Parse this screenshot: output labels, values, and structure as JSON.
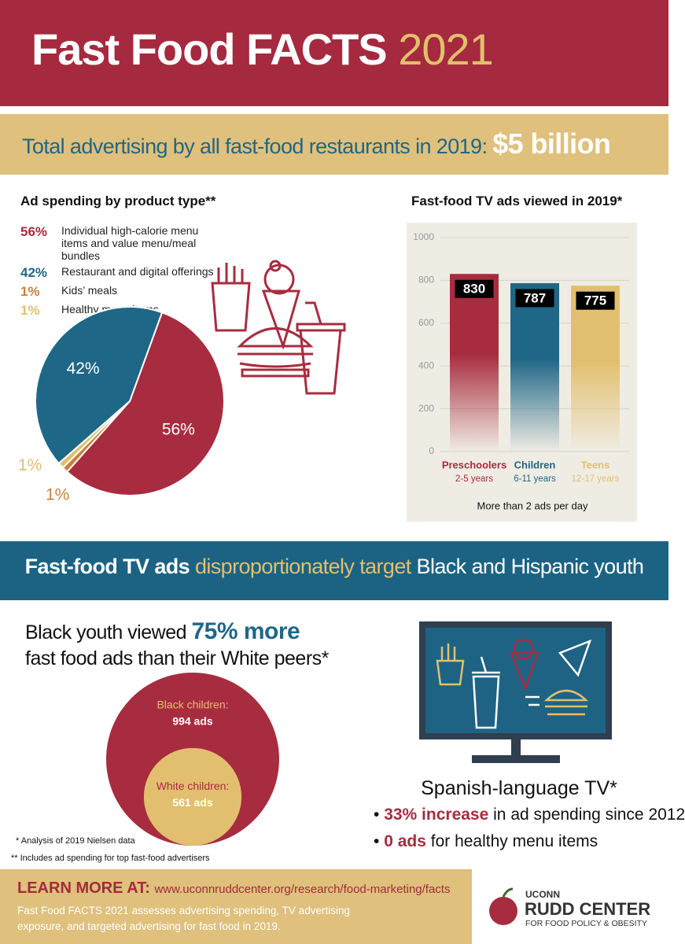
{
  "header": {
    "title": "Fast Food FACTS",
    "year": "2021"
  },
  "banner": {
    "text": "Total advertising by all fast-food restaurants in 2019:",
    "amount": "$5 billion"
  },
  "chart_data": [
    {
      "type": "pie",
      "title": "Ad spending by product type**",
      "categories": [
        "Individual high-calorie menu items and value menu/meal bundles",
        "Restaurant and digital offerings",
        "Kids’ meals",
        "Healthy menu items"
      ],
      "values": [
        56,
        42,
        1,
        1
      ],
      "value_labels": [
        "56%",
        "42%",
        "1%",
        "1%"
      ],
      "colors": [
        "#a82c3f",
        "#1f6787",
        "#c9803f",
        "#e2bf6e"
      ]
    },
    {
      "type": "bar",
      "title": "Fast-food TV ads viewed in 2019*",
      "categories": [
        "Preschoolers",
        "Children",
        "Teens"
      ],
      "category_sublabels": [
        "2-5 years",
        "6-11 years",
        "12-17 years"
      ],
      "values": [
        830,
        787,
        775
      ],
      "colors": [
        "#a82c3f",
        "#1f6787",
        "#e2bf6e"
      ],
      "ylim": [
        0,
        1000
      ],
      "yticks": [
        0,
        200,
        400,
        600,
        800,
        1000
      ],
      "grid": true,
      "note": "More than 2 ads per day"
    },
    {
      "type": "nested-circles",
      "categories": [
        "Black children:",
        "White children:"
      ],
      "values": [
        994,
        561
      ],
      "value_labels": [
        "994 ads",
        "561 ads"
      ],
      "colors": [
        "#a82c3f",
        "#e2bf6e"
      ]
    }
  ],
  "section2": {
    "banner": [
      "Fast-food TV ads",
      "disproportionately target",
      "Black and Hispanic youth"
    ],
    "headline": [
      "Black youth viewed",
      "75% more",
      "fast food ads than their White peers*"
    ],
    "spanish": {
      "title": "Spanish-language TV*",
      "bullets": [
        {
          "highlight": "33% increase",
          "text": "in ad spending since 2012"
        },
        {
          "highlight": "0 ads",
          "text": "for healthy menu items"
        }
      ]
    }
  },
  "footnotes": [
    "* Analysis of 2019 Nielsen data",
    "** Includes ad spending for top fast-food advertisers"
  ],
  "footer": {
    "learn": "LEARN MORE AT:",
    "url": "www.uconnruddcenter.org/research/food-marketing/facts",
    "description": "Fast Food FACTS 2021 assesses advertising spending, TV advertising exposure, and targeted advertising for fast food in 2019.",
    "logo": [
      "UCONN",
      "RUDD CENTER",
      "FOR FOOD POLICY & OBESITY"
    ]
  }
}
